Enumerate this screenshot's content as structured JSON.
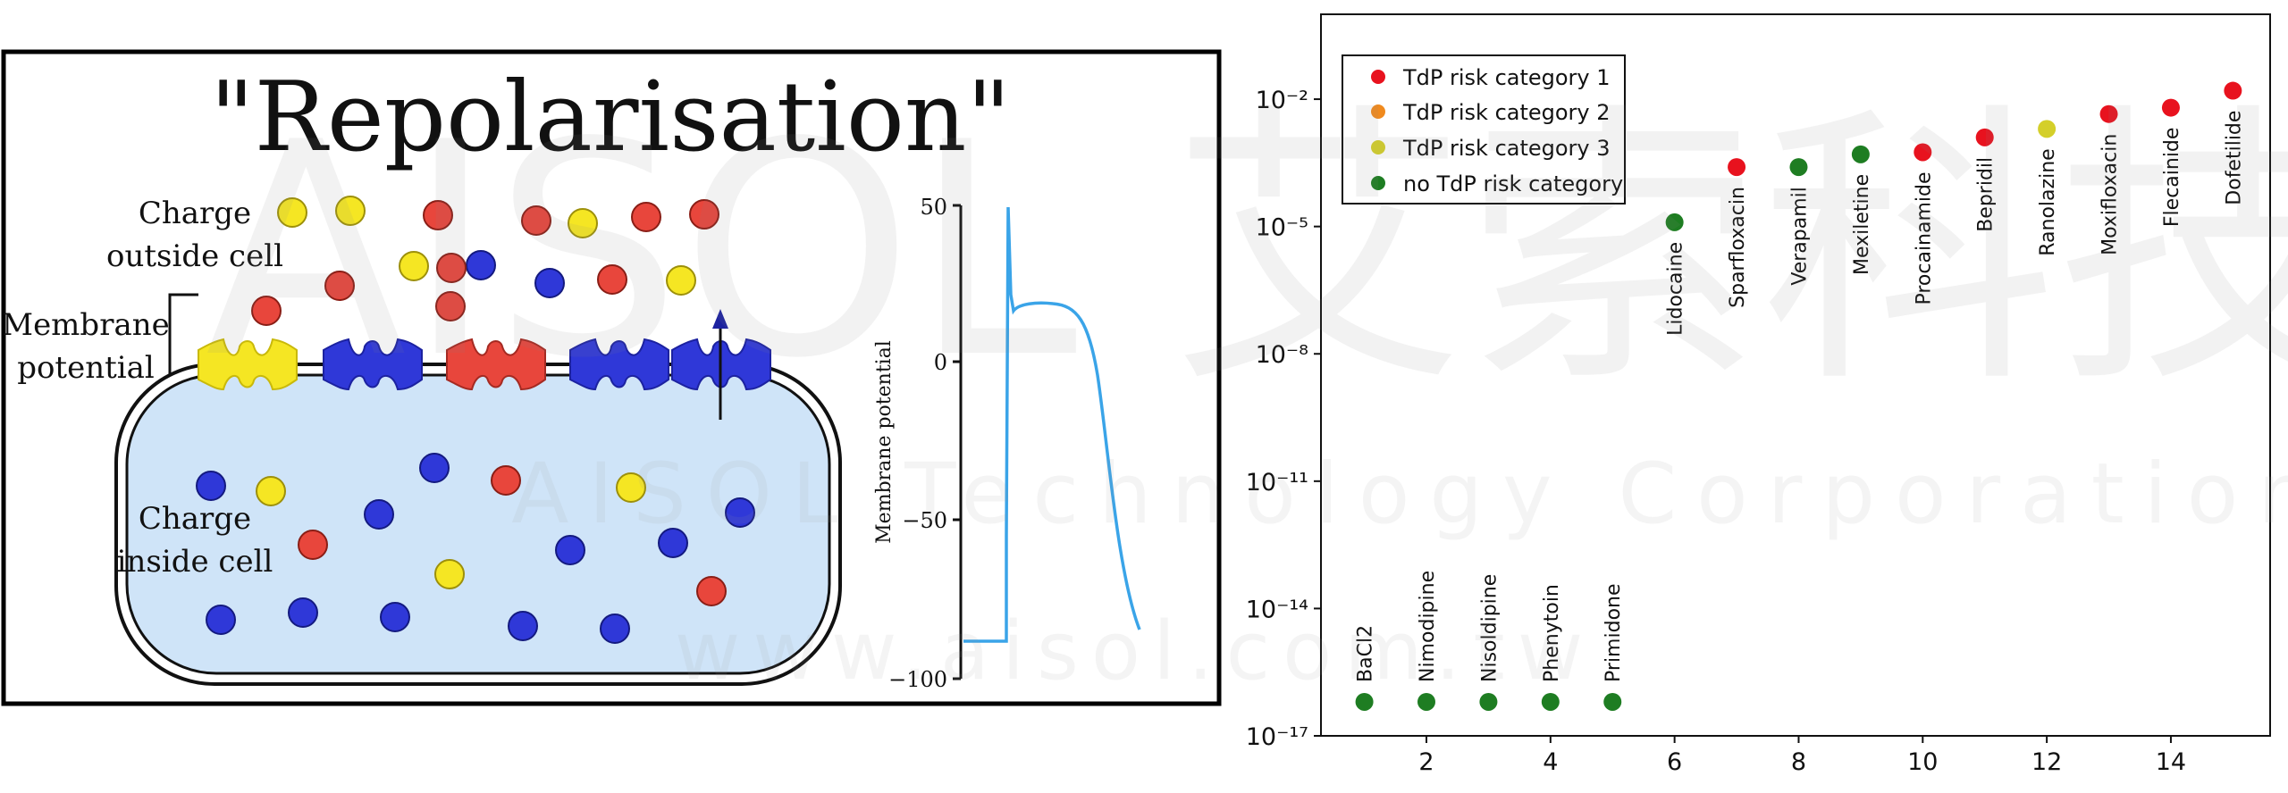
{
  "watermark": {
    "logo": "AISOL 艾索科技",
    "company": "AISOL Technology Corporation",
    "url": "www.aisol.com.tw"
  },
  "left_panel": {
    "title": "\"Repolarisation\"",
    "labels": {
      "outside": [
        "Charge",
        "outside cell"
      ],
      "membrane": [
        "Membrane",
        "potential"
      ],
      "inside": [
        "Charge",
        "inside cell"
      ]
    },
    "colors": {
      "red": "#e8463c",
      "yellow": "#f5e623",
      "blue": "#2f38d8",
      "cell": "#cfe4f8",
      "trace": "#3aa4e8"
    },
    "potential_plot": {
      "ylabel": "Membrane potential",
      "yticks": [
        "50",
        "0",
        "−50",
        "−100"
      ],
      "ylim": [
        -100,
        50
      ]
    }
  },
  "chart_data": {
    "type": "scatter",
    "ylog": true,
    "ylim_exp": [
      -17,
      0
    ],
    "yticks": [
      "10^-2",
      "10^-5",
      "10^-8",
      "10^-11",
      "10^-14",
      "10^-17"
    ],
    "xlim": [
      0.3,
      15.6
    ],
    "xticks": [
      "2",
      "4",
      "6",
      "8",
      "10",
      "12",
      "14"
    ],
    "legend": {
      "placement": "top-left",
      "entries": [
        {
          "label": "TdP risk category 1",
          "color": "#e8121e"
        },
        {
          "label": "TdP risk category 2",
          "color": "#f08a1e"
        },
        {
          "label": "TdP risk category 3",
          "color": "#d4cf2a"
        },
        {
          "label": "no TdP risk category",
          "color": "#1e7d22"
        }
      ]
    },
    "points": [
      {
        "x": 1,
        "y_exp": -16.2,
        "label": "BaCl2",
        "cat": 3
      },
      {
        "x": 2,
        "y_exp": -16.2,
        "label": "Nimodipine",
        "cat": 3
      },
      {
        "x": 3,
        "y_exp": -16.2,
        "label": "Nisoldipine",
        "cat": 3
      },
      {
        "x": 4,
        "y_exp": -16.2,
        "label": "Phenytoin",
        "cat": 3
      },
      {
        "x": 5,
        "y_exp": -16.2,
        "label": "Primidone",
        "cat": 3
      },
      {
        "x": 6,
        "y_exp": -4.9,
        "label": "Lidocaine",
        "cat": 3
      },
      {
        "x": 7,
        "y_exp": -3.6,
        "label": "Sparfloxacin",
        "cat": 0
      },
      {
        "x": 8,
        "y_exp": -3.6,
        "label": "Verapamil",
        "cat": 3
      },
      {
        "x": 9,
        "y_exp": -3.3,
        "label": "Mexiletine",
        "cat": 3
      },
      {
        "x": 10,
        "y_exp": -3.25,
        "label": "Procainamide",
        "cat": 0
      },
      {
        "x": 11,
        "y_exp": -2.9,
        "label": "Bepridil",
        "cat": 0
      },
      {
        "x": 12,
        "y_exp": -2.7,
        "label": "Ranolazine",
        "cat": 2
      },
      {
        "x": 13,
        "y_exp": -2.35,
        "label": "Moxifloxacin",
        "cat": 0
      },
      {
        "x": 14,
        "y_exp": -2.2,
        "label": "Flecainide",
        "cat": 0
      },
      {
        "x": 15,
        "y_exp": -1.8,
        "label": "Dofetilide",
        "cat": 0
      }
    ]
  }
}
